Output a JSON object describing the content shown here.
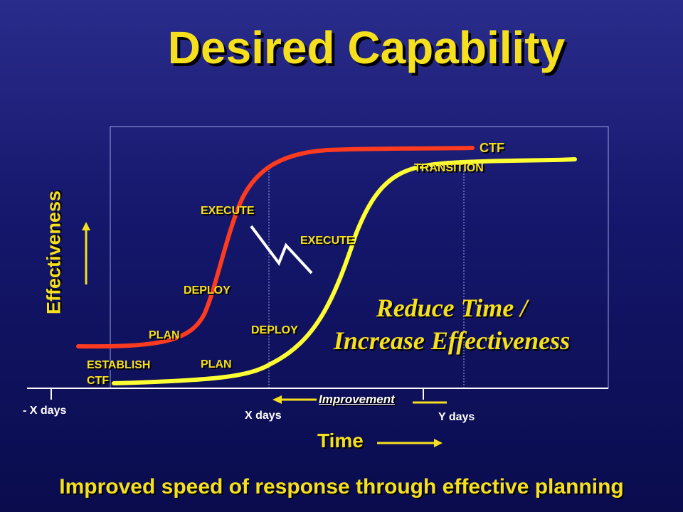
{
  "slide": {
    "title": "Desired Capability",
    "y_axis_label": "Effectiveness",
    "x_axis_label": "Time",
    "message_line1": "Reduce Time /",
    "message_line2": "Increase Effectiveness",
    "footer": "Improved speed of response through effective planning",
    "improvement_label": "Improvement"
  },
  "ticks": {
    "minus_x": "- X days",
    "x": "X days",
    "y": "Y days"
  },
  "labels": {
    "ctf": "CTF",
    "transition": "TRANSITION",
    "execute_red": "EXECUTE",
    "execute_yellow": "EXECUTE",
    "deploy_red": "DEPLOY",
    "deploy_yellow": "DEPLOY",
    "plan_red": "PLAN",
    "plan_yellow": "PLAN",
    "establish": "ESTABLISH",
    "establish_ctf": "CTF"
  },
  "colors": {
    "background": "#14166a",
    "accent_yellow": "#f6e01e",
    "curve_red": "#ff3b1f",
    "curve_yellow": "#ffff33",
    "text_white": "#ffffff"
  },
  "icons": {
    "lightning": "lightning-bolt-icon",
    "up_arrow": "arrow-up-icon",
    "right_arrow": "arrow-right-icon",
    "left_arrow": "arrow-left-icon"
  }
}
